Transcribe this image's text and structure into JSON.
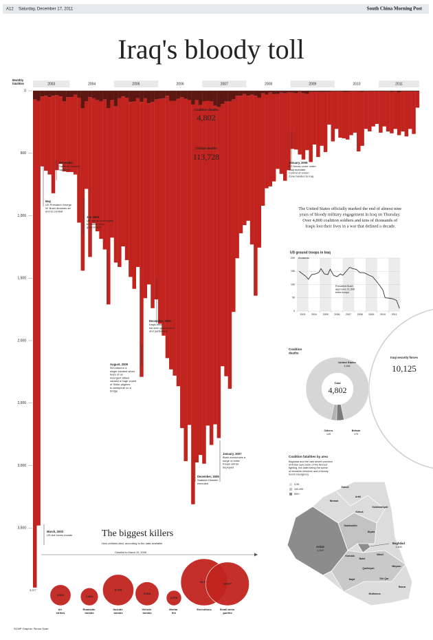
{
  "header": {
    "page": "A12",
    "date": "Saturday, December 17, 2011",
    "paper": "South China Morning Post"
  },
  "title": "Iraq's bloody toll",
  "intro": "The United States officially marked the end of almost nine years of bloody military engagement in Iraq on Thursday. Over 4,800 coalition soldiers and tens of thousands of Iraqis lost their lives in a war that defined a decade.",
  "credit": "SCMP Graphic: Simon Scarr",
  "chart_data": [
    {
      "type": "bar",
      "stacked": true,
      "y_label": "Monthly fatalities",
      "year_labels": [
        "2003",
        "2004",
        "2005",
        "2006",
        "2007",
        "2008",
        "2009",
        "2010",
        "2011"
      ],
      "categories": [
        null,
        null,
        null,
        null,
        null,
        null,
        null,
        null,
        null,
        null,
        null,
        null,
        null,
        null,
        null,
        null,
        null,
        null,
        null,
        null,
        null,
        null,
        null,
        null,
        null,
        null,
        null,
        null,
        null,
        null,
        null,
        null,
        null,
        null,
        null,
        null,
        null,
        null,
        null,
        null,
        null,
        null,
        null,
        null,
        null,
        null,
        null,
        null,
        null,
        null,
        null,
        null,
        null,
        null,
        null,
        null,
        null,
        null,
        null,
        null,
        null,
        null,
        null,
        null,
        null,
        null,
        null,
        null,
        null,
        null,
        null,
        null,
        null,
        null,
        null,
        null,
        null,
        null,
        null,
        null,
        null,
        null,
        null,
        null,
        null,
        null,
        null,
        null,
        null,
        null,
        null,
        null,
        null,
        null,
        null,
        null,
        null,
        null,
        null,
        null,
        null,
        null,
        null,
        null,
        null
      ],
      "series": [
        {
          "name": "Coalition deaths",
          "color": "#5c1712",
          "total_label": "4,802",
          "values": [
            70,
            80,
            45,
            40,
            50,
            40,
            35,
            45,
            85,
            50,
            50,
            30,
            55,
            140,
            85,
            50,
            60,
            75,
            85,
            70,
            140,
            75,
            125,
            60,
            45,
            55,
            90,
            85,
            60,
            90,
            60,
            100,
            90,
            70,
            65,
            60,
            40,
            80,
            80,
            65,
            50,
            65,
            75,
            110,
            75,
            115,
            85,
            80,
            85,
            120,
            130,
            105,
            85,
            85,
            70,
            40,
            40,
            25,
            40,
            30,
            40,
            55,
            20,
            30,
            15,
            25,
            25,
            15,
            20,
            15,
            15,
            20,
            10,
            20,
            25,
            10,
            10,
            10,
            10,
            10,
            10,
            5,
            5,
            5,
            10,
            10,
            5,
            5,
            5,
            10,
            5,
            5,
            5,
            5,
            5,
            5,
            5,
            10,
            5,
            15,
            5,
            5,
            5,
            5,
            5
          ]
        },
        {
          "name": "Civilian deaths",
          "color": "#c1241f",
          "total_label": "113,728",
          "values": [
            3907,
            3400,
            560,
            600,
            620,
            780,
            600,
            540,
            560,
            600,
            600,
            640,
            1000,
            1300,
            700,
            1280,
            1000,
            1050,
            1100,
            1200,
            1570,
            1100,
            1250,
            1350,
            1200,
            1300,
            1400,
            1500,
            1350,
            2200,
            1600,
            1450,
            1650,
            1600,
            1800,
            1900,
            2100,
            2150,
            2200,
            2300,
            2650,
            2900,
            2600,
            3200,
            2900,
            2800,
            2900,
            2600,
            2750,
            2550,
            2650,
            2100,
            2200,
            2300,
            1700,
            1300,
            1100,
            1050,
            1000,
            1200,
            1600,
            1200,
            900,
            750,
            750,
            700,
            600,
            650,
            700,
            620,
            450,
            450,
            500,
            530,
            450,
            560,
            420,
            520,
            430,
            480,
            260,
            400,
            300,
            370,
            370,
            380,
            350,
            330,
            480,
            430,
            300,
            320,
            280,
            260,
            330,
            280,
            320,
            330,
            300,
            340,
            320,
            360,
            300,
            340,
            130
          ]
        }
      ],
      "max_total": {
        "value": 3977,
        "label": "3,977"
      },
      "ylim": [
        0,
        4000
      ],
      "yticks": [
        0,
        500,
        {
          "value": 1000,
          "label": "1,000"
        },
        {
          "value": 1500,
          "label": "1,500"
        },
        {
          "value": 2000,
          "label": "2,000"
        },
        {
          "value": 2500,
          "label": "2,500"
        },
        {
          "value": 3000,
          "label": "3,000"
        },
        {
          "value": 3500,
          "label": "3,500"
        }
      ],
      "annotations": [
        {
          "title": "March, 2003",
          "text": "US-led forces invade"
        },
        {
          "title": "May",
          "text": "US President George W. Bush declares an end to combat"
        },
        {
          "title": "December",
          "text": "Saddam Hussein captured"
        },
        {
          "title": "Jun 2004",
          "text": "US hands sovereignty to interim Iraqi government"
        },
        {
          "title": "August, 2005",
          "text": "953 killed in a single incident when fears of an insurgent attack caused a huge crowd of Shiite pilgrims to stampede on a bridge"
        },
        {
          "title": "December, 2005",
          "text": "Iraqis elect full-term government and parliament"
        },
        {
          "title": "December, 2006",
          "text": "Saddam Hussein executed"
        },
        {
          "title": "January, 2007",
          "text": "Bush announces a surge of extra troops will be deployed"
        },
        {
          "title": "January, 2009",
          "text": "US forces come under Iraqi mandate. Control of Green Zone handed to Iraq"
        }
      ]
    },
    {
      "type": "line",
      "title": "US ground troops in Iraq",
      "y_unit": "thousands",
      "color": "#333333",
      "x": [
        2003.2,
        2003.5,
        2003.8,
        2004.0,
        2004.3,
        2004.6,
        2004.9,
        2005.1,
        2005.4,
        2005.7,
        2005.9,
        2006.2,
        2006.5,
        2006.8,
        2007.0,
        2007.3,
        2007.6,
        2007.9,
        2008.2,
        2008.5,
        2008.8,
        2009.0,
        2009.3,
        2009.6,
        2009.9,
        2010.2,
        2010.5,
        2010.7,
        2011.0,
        2011.4,
        2011.7,
        2011.95
      ],
      "values": [
        150,
        140,
        130,
        120,
        138,
        140,
        145,
        160,
        140,
        138,
        158,
        135,
        130,
        140,
        135,
        150,
        165,
        160,
        157,
        145,
        145,
        142,
        135,
        130,
        115,
        98,
        80,
        50,
        49,
        46,
        40,
        10
      ],
      "xlim": [
        2003,
        2012
      ],
      "xticks": [
        2003,
        2004,
        2005,
        2006,
        2007,
        2008,
        2009,
        2010,
        2011
      ],
      "ylim": [
        0,
        200
      ],
      "yticks": [
        0,
        50,
        100,
        150,
        200
      ],
      "annotation": "President Bush approves 21,500 extra troops"
    },
    {
      "type": "donut",
      "title": "Coalition deaths",
      "categories": [
        "United States",
        "Britain",
        "Others"
      ],
      "values": [
        4484,
        179,
        139
      ],
      "value_labels": [
        "4,484",
        "179",
        "139"
      ],
      "colors": [
        "#d6d6d6",
        "#7b7b7b",
        "#b3b3b3"
      ],
      "total_title": "Total",
      "total": {
        "value": 4802,
        "label": "4,802"
      },
      "iraqi": {
        "name": "Iraqi security forces",
        "label": "10,125"
      }
    },
    {
      "type": "bubble",
      "title": "The biggest killers",
      "subtitle": "How civilians died, according to the data available",
      "range_note": "Detailed to March 19, 2008",
      "color": "#c1241f",
      "categories": [
        "Air strikes",
        "Roadside bombs",
        "Suicide bombs",
        "Vehicle bombs",
        "Mortar fire",
        "Executions",
        "Small arms gunfire"
      ],
      "values": [
        3910,
        2824,
        8708,
        5064,
        2070,
        19706,
        16977
      ],
      "value_labels": [
        "3,910",
        "2,824",
        "8,708",
        "5,064",
        "2,070",
        "19,706",
        "16,977"
      ]
    }
  ],
  "map": {
    "title": "Coalition fatalities by area",
    "text": "Baghdad and the vast desert province of Anbar saw some of the fiercest fighting, the latter being the scene of sectarian tensions and a bloody Sunni insurgency",
    "legend": [
      "0-99",
      "100-499",
      "500+"
    ],
    "regions": [
      {
        "name": "Dahuk"
      },
      {
        "name": "Ninawa"
      },
      {
        "name": "Arbil"
      },
      {
        "name": "Sulaimaniyah"
      },
      {
        "name": "Kirkuk"
      },
      {
        "name": "Salahuddin"
      },
      {
        "name": "Diyala"
      },
      {
        "name": "Anbar",
        "label": "1,359"
      },
      {
        "name": "Baghdad",
        "label": "1,455"
      },
      {
        "name": "Karbala"
      },
      {
        "name": "Babil"
      },
      {
        "name": "Wasit"
      },
      {
        "name": "Qadisiyah"
      },
      {
        "name": "Najaf"
      },
      {
        "name": "Maysan"
      },
      {
        "name": "Dhi Qar"
      },
      {
        "name": "Basra"
      },
      {
        "name": "Muthanna"
      }
    ]
  }
}
